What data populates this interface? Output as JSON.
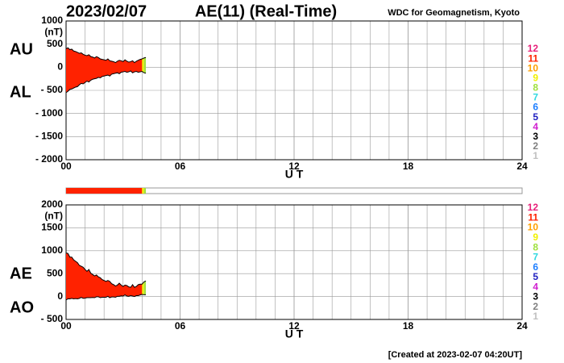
{
  "header": {
    "date": "2023/02/07",
    "title": "AE(11) (Real-Time)",
    "source": "WDC for Geomagnetism, Kyoto"
  },
  "footer": "[Created at 2023-02-07 04:20UT]",
  "station_colors": [
    {
      "count": 12,
      "color": "#e8207a"
    },
    {
      "count": 11,
      "color": "#ff2200"
    },
    {
      "count": 10,
      "color": "#ffa000"
    },
    {
      "count": 9,
      "color": "#f0f000"
    },
    {
      "count": 8,
      "color": "#a0e040"
    },
    {
      "count": 7,
      "color": "#30d8e0"
    },
    {
      "count": 6,
      "color": "#2080ff"
    },
    {
      "count": 5,
      "color": "#2020c0"
    },
    {
      "count": 4,
      "color": "#d020d0"
    },
    {
      "count": 3,
      "color": "#000000"
    },
    {
      "count": 2,
      "color": "#808080"
    },
    {
      "count": 1,
      "color": "#c0c0c0"
    }
  ],
  "coverage": [
    {
      "start": 0,
      "end": 4.0,
      "stations": 11
    },
    {
      "start": 4.0,
      "end": 4.1,
      "stations": 9
    },
    {
      "start": 4.1,
      "end": 4.2,
      "stations": 8
    }
  ],
  "chart_data": [
    {
      "type": "area",
      "xlabel": "U T",
      "y_unit": "(nT)",
      "xlim": [
        0,
        24
      ],
      "xticks": [
        {
          "value": 0,
          "label": "00"
        },
        {
          "value": 6,
          "label": "06"
        },
        12,
        18,
        24
      ],
      "ylim": [
        -2000,
        1000
      ],
      "yticks": [
        1000,
        500,
        0,
        {
          "value": -500,
          "label": "- 500"
        },
        {
          "value": -1000,
          "label": "- 1000"
        },
        {
          "value": -1500,
          "label": "- 1500"
        },
        {
          "value": -2000,
          "label": "- 2000"
        }
      ],
      "grid": true,
      "x": [
        0,
        0.1,
        0.2,
        0.3,
        0.4,
        0.5,
        0.6,
        0.7,
        0.8,
        0.9,
        1.0,
        1.1,
        1.2,
        1.3,
        1.4,
        1.5,
        1.6,
        1.7,
        1.8,
        1.9,
        2.0,
        2.1,
        2.2,
        2.3,
        2.4,
        2.5,
        2.6,
        2.7,
        2.8,
        2.9,
        3.0,
        3.1,
        3.2,
        3.3,
        3.4,
        3.5,
        3.6,
        3.7,
        3.8,
        3.9,
        4.0,
        4.1,
        4.2
      ],
      "series": [
        {
          "name": "AU",
          "color": "#000000",
          "values": [
            400,
            420,
            380,
            390,
            350,
            340,
            320,
            300,
            310,
            280,
            260,
            250,
            270,
            230,
            220,
            200,
            230,
            210,
            180,
            170,
            160,
            150,
            180,
            140,
            130,
            120,
            100,
            130,
            150,
            140,
            120,
            160,
            130,
            110,
            120,
            140,
            100,
            130,
            150,
            170,
            180,
            200,
            210
          ]
        },
        {
          "name": "AL",
          "color": "#000000",
          "values": [
            -550,
            -520,
            -480,
            -470,
            -450,
            -430,
            -420,
            -380,
            -350,
            -360,
            -330,
            -300,
            -320,
            -280,
            -260,
            -250,
            -240,
            -220,
            -230,
            -200,
            -190,
            -180,
            -170,
            -190,
            -150,
            -140,
            -130,
            -120,
            -140,
            -110,
            -100,
            -90,
            -110,
            -100,
            -80,
            -120,
            -100,
            -90,
            -110,
            -100,
            -90,
            -120,
            -130
          ]
        }
      ]
    },
    {
      "type": "area",
      "xlabel": "U T",
      "y_unit": "(nT)",
      "xlim": [
        0,
        24
      ],
      "xticks": [
        {
          "value": 0,
          "label": "00"
        },
        {
          "value": 6,
          "label": "06"
        },
        12,
        18,
        24
      ],
      "ylim": [
        -500,
        2000
      ],
      "yticks": [
        2000,
        1500,
        1000,
        500,
        0,
        {
          "value": -500,
          "label": "- 500"
        }
      ],
      "grid": true,
      "x": [
        0,
        0.1,
        0.2,
        0.3,
        0.4,
        0.5,
        0.6,
        0.7,
        0.8,
        0.9,
        1.0,
        1.1,
        1.2,
        1.3,
        1.4,
        1.5,
        1.6,
        1.7,
        1.8,
        1.9,
        2.0,
        2.1,
        2.2,
        2.3,
        2.4,
        2.5,
        2.6,
        2.7,
        2.8,
        2.9,
        3.0,
        3.1,
        3.2,
        3.3,
        3.4,
        3.5,
        3.6,
        3.7,
        3.8,
        3.9,
        4.0,
        4.1,
        4.2
      ],
      "series": [
        {
          "name": "AE",
          "color": "#000000",
          "values": [
            950,
            940,
            860,
            860,
            800,
            770,
            740,
            680,
            660,
            640,
            590,
            550,
            590,
            510,
            480,
            450,
            470,
            430,
            410,
            370,
            350,
            330,
            350,
            330,
            280,
            260,
            230,
            250,
            290,
            250,
            220,
            250,
            240,
            210,
            200,
            260,
            200,
            220,
            260,
            270,
            270,
            320,
            340
          ]
        },
        {
          "name": "AO",
          "color": "#000000",
          "values": [
            -75,
            -50,
            -50,
            -40,
            -50,
            -45,
            -50,
            -40,
            -20,
            -40,
            -35,
            -25,
            -25,
            -25,
            -20,
            -25,
            -5,
            -5,
            -25,
            -15,
            -15,
            -15,
            5,
            -25,
            -10,
            -10,
            -15,
            5,
            5,
            15,
            10,
            35,
            10,
            5,
            20,
            10,
            0,
            20,
            20,
            35,
            45,
            40,
            40
          ]
        }
      ]
    }
  ]
}
